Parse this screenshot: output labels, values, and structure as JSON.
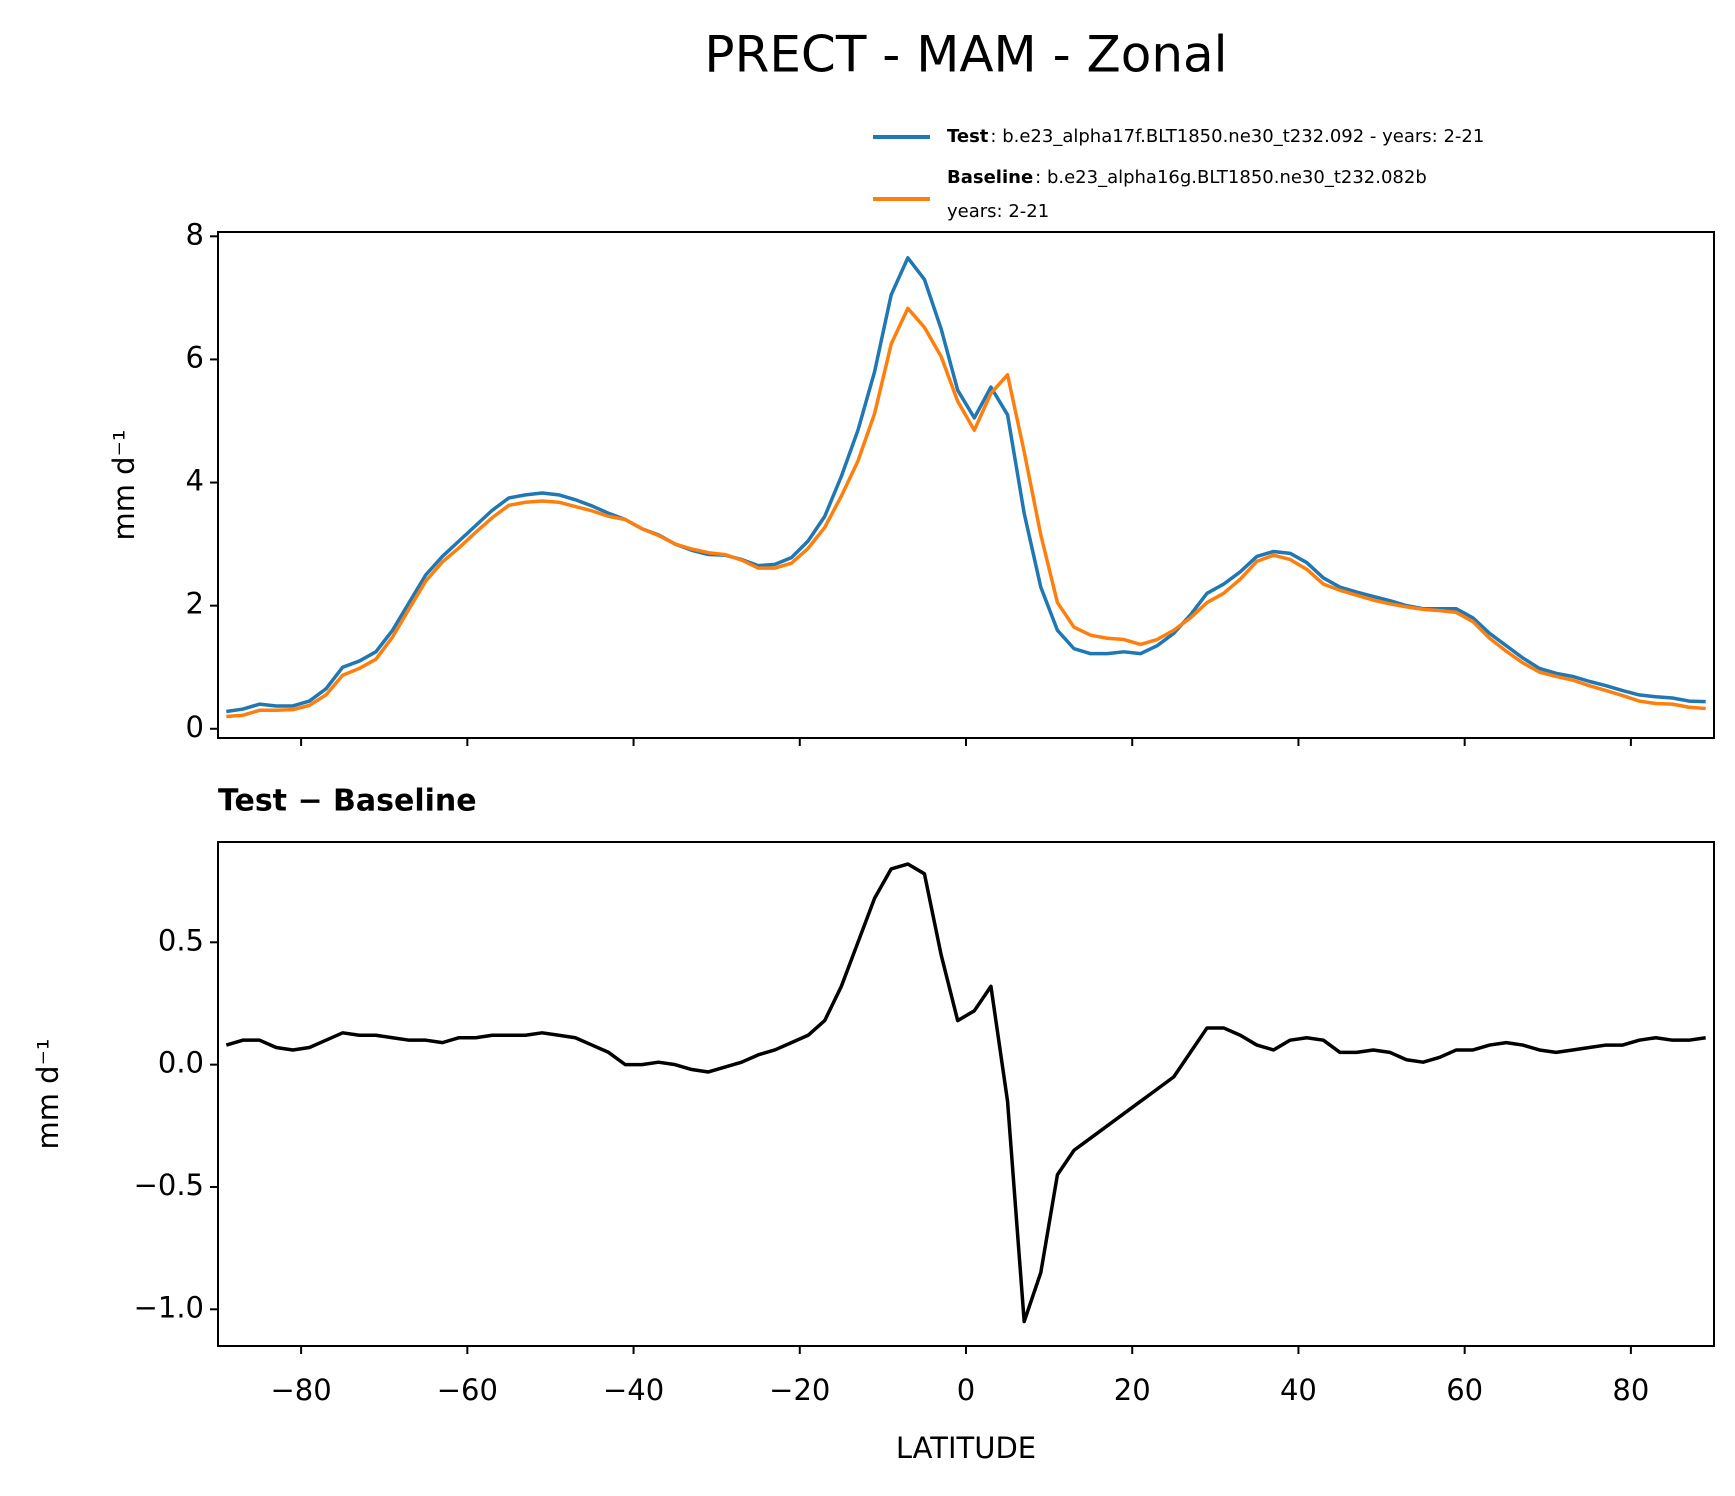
{
  "title": "PRECT - MAM - Zonal",
  "chart_data": [
    {
      "type": "line",
      "ylabel": "mm d⁻¹",
      "x": [
        -89,
        -87,
        -85,
        -83,
        -81,
        -79,
        -77,
        -75,
        -73,
        -71,
        -69,
        -67,
        -65,
        -63,
        -61,
        -59,
        -57,
        -55,
        -53,
        -51,
        -49,
        -47,
        -45,
        -43,
        -41,
        -39,
        -37,
        -35,
        -33,
        -31,
        -29,
        -27,
        -25,
        -23,
        -21,
        -19,
        -17,
        -15,
        -13,
        -11,
        -9,
        -7,
        -5,
        -3,
        -1,
        1,
        3,
        5,
        7,
        9,
        11,
        13,
        15,
        17,
        19,
        21,
        23,
        25,
        27,
        29,
        31,
        33,
        35,
        37,
        39,
        41,
        43,
        45,
        47,
        49,
        51,
        53,
        55,
        57,
        59,
        61,
        63,
        65,
        67,
        69,
        71,
        73,
        75,
        77,
        79,
        81,
        83,
        85,
        87,
        89
      ],
      "series": [
        {
          "name": "Test",
          "description": [
            ": b.e23_alpha17f.BLT1850.ne30_t232.092 - years: 2-21"
          ],
          "color": "#1f77b4",
          "values": [
            0.28,
            0.32,
            0.4,
            0.37,
            0.37,
            0.45,
            0.65,
            1.0,
            1.1,
            1.25,
            1.6,
            2.05,
            2.5,
            2.8,
            3.05,
            3.3,
            3.55,
            3.75,
            3.8,
            3.83,
            3.8,
            3.72,
            3.62,
            3.5,
            3.4,
            3.25,
            3.15,
            3.0,
            2.9,
            2.83,
            2.82,
            2.75,
            2.65,
            2.67,
            2.78,
            3.05,
            3.45,
            4.1,
            4.85,
            5.8,
            7.05,
            7.65,
            7.3,
            6.5,
            5.5,
            5.05,
            5.55,
            5.1,
            3.5,
            2.3,
            1.6,
            1.3,
            1.22,
            1.22,
            1.25,
            1.22,
            1.35,
            1.55,
            1.85,
            2.2,
            2.35,
            2.55,
            2.8,
            2.88,
            2.85,
            2.7,
            2.45,
            2.3,
            2.22,
            2.15,
            2.08,
            2.0,
            1.95,
            1.95,
            1.95,
            1.8,
            1.55,
            1.35,
            1.15,
            0.98,
            0.9,
            0.85,
            0.77,
            0.7,
            0.62,
            0.55,
            0.52,
            0.5,
            0.45,
            0.44
          ]
        },
        {
          "name": "Baseline",
          "description": [
            ": b.e23_alpha16g.BLT1850.ne30_t232.082b",
            "years: 2-21"
          ],
          "color": "#ff7f0e",
          "values": [
            0.2,
            0.22,
            0.3,
            0.3,
            0.31,
            0.38,
            0.55,
            0.87,
            0.98,
            1.13,
            1.49,
            1.95,
            2.4,
            2.71,
            2.94,
            3.19,
            3.43,
            3.63,
            3.68,
            3.7,
            3.68,
            3.61,
            3.54,
            3.45,
            3.4,
            3.25,
            3.14,
            3.0,
            2.92,
            2.86,
            2.83,
            2.74,
            2.61,
            2.61,
            2.69,
            2.93,
            3.27,
            3.78,
            4.35,
            5.12,
            6.25,
            6.83,
            6.52,
            6.05,
            5.32,
            4.85,
            5.45,
            5.75,
            4.5,
            3.15,
            2.05,
            1.65,
            1.52,
            1.47,
            1.45,
            1.37,
            1.45,
            1.6,
            1.8,
            2.05,
            2.2,
            2.43,
            2.72,
            2.82,
            2.75,
            2.59,
            2.35,
            2.25,
            2.17,
            2.09,
            2.03,
            1.98,
            1.94,
            1.92,
            1.89,
            1.74,
            1.47,
            1.26,
            1.07,
            0.92,
            0.85,
            0.79,
            0.7,
            0.62,
            0.54,
            0.45,
            0.41,
            0.4,
            0.35,
            0.33
          ]
        }
      ],
      "xlim": [
        -90,
        90
      ],
      "xticks": [
        -80,
        -60,
        -40,
        -20,
        0,
        20,
        40,
        60,
        80
      ],
      "show_xticklabels": false,
      "ylim": [
        -0.15,
        8.07
      ],
      "yticks": [
        0,
        2,
        4,
        6,
        8
      ]
    },
    {
      "type": "line",
      "title": "Test − Baseline",
      "ylabel": "mm d⁻¹",
      "xlabel": "LATITUDE",
      "x": [
        -89,
        -87,
        -85,
        -83,
        -81,
        -79,
        -77,
        -75,
        -73,
        -71,
        -69,
        -67,
        -65,
        -63,
        -61,
        -59,
        -57,
        -55,
        -53,
        -51,
        -49,
        -47,
        -45,
        -43,
        -41,
        -39,
        -37,
        -35,
        -33,
        -31,
        -29,
        -27,
        -25,
        -23,
        -21,
        -19,
        -17,
        -15,
        -13,
        -11,
        -9,
        -7,
        -5,
        -3,
        -1,
        1,
        3,
        5,
        7,
        9,
        11,
        13,
        15,
        17,
        19,
        21,
        23,
        25,
        27,
        29,
        31,
        33,
        35,
        37,
        39,
        41,
        43,
        45,
        47,
        49,
        51,
        53,
        55,
        57,
        59,
        61,
        63,
        65,
        67,
        69,
        71,
        73,
        75,
        77,
        79,
        81,
        83,
        85,
        87,
        89
      ],
      "color": "#000000",
      "values": [
        0.08,
        0.1,
        0.1,
        0.07,
        0.06,
        0.07,
        0.1,
        0.13,
        0.12,
        0.12,
        0.11,
        0.1,
        0.1,
        0.09,
        0.11,
        0.11,
        0.12,
        0.12,
        0.12,
        0.13,
        0.12,
        0.11,
        0.08,
        0.05,
        0.0,
        0.0,
        0.01,
        0.0,
        -0.02,
        -0.03,
        -0.01,
        0.01,
        0.04,
        0.06,
        0.09,
        0.12,
        0.18,
        0.32,
        0.5,
        0.68,
        0.8,
        0.82,
        0.78,
        0.45,
        0.18,
        0.22,
        0.32,
        -0.15,
        -1.05,
        -0.85,
        -0.45,
        -0.35,
        -0.3,
        -0.25,
        -0.2,
        -0.15,
        -0.1,
        -0.05,
        0.05,
        0.15,
        0.15,
        0.12,
        0.08,
        0.06,
        0.1,
        0.11,
        0.1,
        0.05,
        0.05,
        0.06,
        0.05,
        0.02,
        0.01,
        0.03,
        0.06,
        0.06,
        0.08,
        0.09,
        0.08,
        0.06,
        0.05,
        0.06,
        0.07,
        0.08,
        0.08,
        0.1,
        0.11,
        0.1,
        0.1,
        0.11
      ],
      "xlim": [
        -90,
        90
      ],
      "xticks": [
        {
          "value": -80,
          "label": "−80"
        },
        {
          "value": -60,
          "label": "−60"
        },
        {
          "value": -40,
          "label": "−40"
        },
        {
          "value": -20,
          "label": "−20"
        },
        0,
        20,
        40,
        60,
        80
      ],
      "show_xticklabels": true,
      "ylim": [
        -1.15,
        0.91
      ],
      "yticks": [
        {
          "value": -1.0,
          "label": "−1.0"
        },
        {
          "value": -0.5,
          "label": "−0.5"
        },
        {
          "value": 0.0,
          "label": "0.0"
        },
        0.5
      ]
    }
  ]
}
